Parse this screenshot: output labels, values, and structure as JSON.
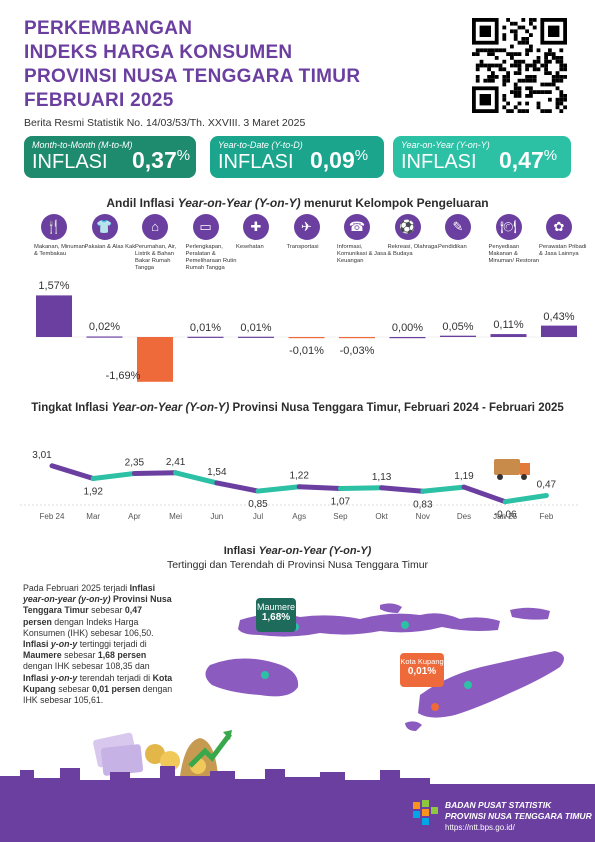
{
  "header": {
    "title_lines": [
      "PERKEMBANGAN",
      "INDEKS HARGA KONSUMEN",
      "PROVINSI NUSA TENGGARA TIMUR",
      "FEBRUARI 2025"
    ],
    "subtitle": "Berita Resmi Statistik No. 14/03/53/Th. XXVIII. 3 Maret 2025"
  },
  "cards": [
    {
      "caption": "Month-to-Month (M-to-M)",
      "word": "INFLASI",
      "value": "0,37",
      "unit": "%",
      "color": "#1e8a6e"
    },
    {
      "caption": "Year-to-Date (Y-to-D)",
      "word": "INFLASI",
      "value": "0,09",
      "unit": "%",
      "color": "#1aa58c"
    },
    {
      "caption": "Year-on-Year (Y-on-Y)",
      "word": "INFLASI",
      "value": "0,47",
      "unit": "%",
      "color": "#2cc0a5"
    }
  ],
  "section1": {
    "title_pre": "Andil Inflasi ",
    "title_em": "Year-on-Year (Y-on-Y)",
    "title_post": " menurut Kelompok Pengeluaran"
  },
  "section2": {
    "title_pre": "Tingkat Inflasi ",
    "title_em": "Year-on-Year (Y-on-Y)",
    "title_post": " Provinsi Nusa Tenggara Timur, Februari 2024 - Februari 2025"
  },
  "section3": {
    "title_pre": "Inflasi ",
    "title_em": "Year-on-Year (Y-on-Y)",
    "subtitle": "Tertinggi dan Terendah di Provinsi Nusa Tenggara Timur",
    "paragraph": [
      {
        "t": "Pada Februari 2025 terjadi ",
        "b": false
      },
      {
        "t": "Inflasi ",
        "b": true
      },
      {
        "t": "year-on-year (y-on-y) ",
        "b": true,
        "i": true
      },
      {
        "t": "Provinsi Nusa Tenggara Timur ",
        "b": true
      },
      {
        "t": "sebesar ",
        "b": false
      },
      {
        "t": "0,47 persen ",
        "b": true
      },
      {
        "t": "dengan Indeks Harga Konsumen (IHK) sebesar 106,50. ",
        "b": false
      },
      {
        "t": "Inflasi ",
        "b": true
      },
      {
        "t": "y-on-y ",
        "b": true,
        "i": true
      },
      {
        "t": "tertinggi terjadi di ",
        "b": false
      },
      {
        "t": "Maumere ",
        "b": true
      },
      {
        "t": "sebesar ",
        "b": false
      },
      {
        "t": "1,68 persen ",
        "b": true
      },
      {
        "t": "dengan IHK sebesar 108,35 dan ",
        "b": false
      },
      {
        "t": "Inflasi ",
        "b": true
      },
      {
        "t": "y-on-y ",
        "b": true,
        "i": true
      },
      {
        "t": "terendah terjadi di ",
        "b": false
      },
      {
        "t": "Kota Kupang ",
        "b": true
      },
      {
        "t": "sebesar ",
        "b": false
      },
      {
        "t": "0,01 persen ",
        "b": true
      },
      {
        "t": "dengan IHK sebesar 105,61.",
        "b": false
      }
    ],
    "highest": {
      "city": "Maumere",
      "value": "1,68%",
      "color": "#1e6b5c"
    },
    "lowest": {
      "city": "Kota Kupang",
      "value": "0,01%",
      "color": "#ee6a3a"
    }
  },
  "footer": {
    "org1": "BADAN PUSAT STATISTIK",
    "org2": "PROVINSI NUSA TENGGARA TIMUR",
    "url": "https://ntt.bps.go.id/"
  },
  "colors": {
    "purple": "#6b3fa0",
    "orange": "#ee6a3a",
    "teal": "#2cc0a5",
    "dark_teal": "#1e8a6e"
  },
  "chart_data": [
    {
      "type": "bar",
      "categories": [
        "Makanan, Minuman & Tembakau",
        "Pakaian & Alas Kaki",
        "Perumahan, Air, Listrik & Bahan Bakar Rumah Tangga",
        "Perlengkapan, Peralatan & Pemeliharaan Rutin Rumah Tangga",
        "Kesehatan",
        "Transportasi",
        "Informasi, Komunikasi & Jasa Keuangan",
        "Rekreasi, Olahraga & Budaya",
        "Pendidikan",
        "Penyediaan Makanan & Minuman/ Restoran",
        "Perawatan Pribadi & Jasa Lainnya"
      ],
      "icons": [
        "food-icon",
        "shirt-icon",
        "house-icon",
        "sofa-icon",
        "health-icon",
        "plane-icon",
        "phone-icon",
        "sport-icon",
        "book-icon",
        "restaurant-icon",
        "care-icon"
      ],
      "values": [
        1.57,
        0.02,
        -1.69,
        0.01,
        0.01,
        -0.01,
        -0.03,
        0.0,
        0.05,
        0.11,
        0.43
      ],
      "labels": [
        "1,57%",
        "0,02%",
        "-1,69%",
        "0,01%",
        "0,01%",
        "-0,01%",
        "-0,03%",
        "0,00%",
        "0,05%",
        "0,11%",
        "0,43%"
      ]
    },
    {
      "type": "line",
      "x": [
        "Feb 24",
        "Mar",
        "Apr",
        "Mei",
        "Jun",
        "Jul",
        "Ags",
        "Sep",
        "Okt",
        "Nov",
        "Des",
        "Jan 25",
        "Feb"
      ],
      "values": [
        3.01,
        1.92,
        2.35,
        2.41,
        1.54,
        0.85,
        1.22,
        1.07,
        1.13,
        0.83,
        1.19,
        -0.06,
        0.47
      ],
      "labels": [
        "3,01",
        "1,92",
        "2,35",
        "2,41",
        "1,54",
        "0,85",
        "1,22",
        "1,07",
        "1,13",
        "0,83",
        "1,19",
        "-0,06",
        "0,47"
      ]
    }
  ]
}
